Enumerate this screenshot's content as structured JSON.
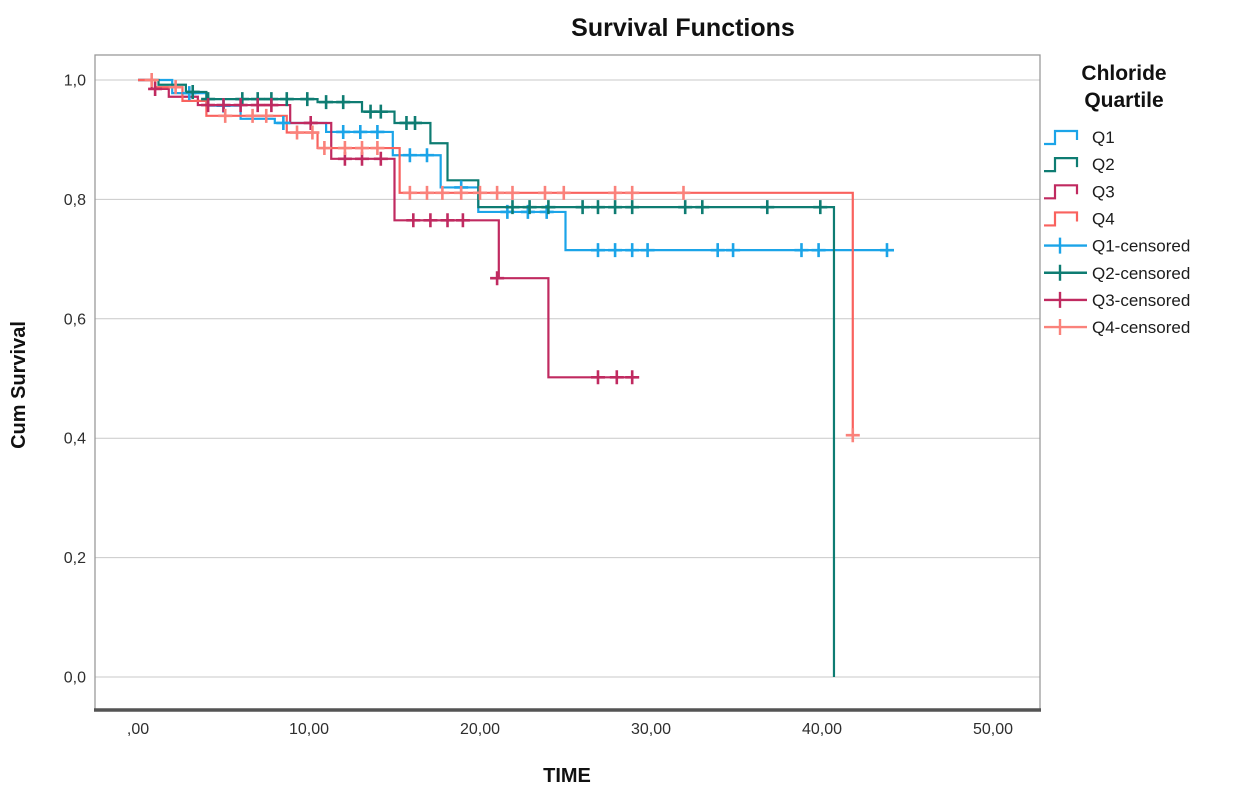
{
  "legend": {
    "title_lines": [
      "Chloride",
      "Quartile"
    ]
  },
  "colors": {
    "grid": "#c9c9c9",
    "frame": "#9a9a9a",
    "axis_bottom": "#545454",
    "background": "#ffffff"
  },
  "chart_data": {
    "type": "line",
    "subtype": "kaplan-meier-step-survival",
    "title": "Survival Functions",
    "xlabel": "TIME",
    "ylabel": "Cum Survival",
    "xlim": [
      -2.5,
      52.7
    ],
    "ylim": [
      -0.055,
      1.042
    ],
    "grid": true,
    "legend_position": "right",
    "xtick_values": [
      0,
      10,
      20,
      30,
      40,
      50
    ],
    "xtick_labels": [
      ",00",
      "10,00",
      "20,00",
      "30,00",
      "40,00",
      "50,00"
    ],
    "ytick_values": [
      0,
      0.2,
      0.4,
      0.6,
      0.8,
      1.0
    ],
    "ytick_labels": [
      "0,0",
      "0,2",
      "0,4",
      "0,6",
      "0,8",
      "1,0"
    ],
    "series": [
      {
        "name": "Q1",
        "censored_name": "Q1-censored",
        "color": "#1BA4E8",
        "censored_color": "#1BA4E8",
        "steps": [
          [
            0,
            1
          ],
          [
            2,
            0.978
          ],
          [
            4,
            0.957
          ],
          [
            6,
            0.935
          ],
          [
            8,
            0.928
          ],
          [
            11,
            0.913
          ],
          [
            14.9,
            0.874
          ],
          [
            17.7,
            0.82
          ],
          [
            19.9,
            0.779
          ],
          [
            25,
            0.715
          ]
        ],
        "end_t": 44.2,
        "censored": [
          [
            3,
            0.978
          ],
          [
            5,
            0.957
          ],
          [
            8.5,
            0.928
          ],
          [
            12,
            0.913
          ],
          [
            13,
            0.913
          ],
          [
            14,
            0.913
          ],
          [
            15.9,
            0.874
          ],
          [
            16.9,
            0.874
          ],
          [
            18.9,
            0.82
          ],
          [
            21.6,
            0.779
          ],
          [
            22.8,
            0.779
          ],
          [
            23.9,
            0.779
          ],
          [
            26.9,
            0.715
          ],
          [
            27.9,
            0.715
          ],
          [
            28.9,
            0.715
          ],
          [
            29.8,
            0.715
          ],
          [
            33.9,
            0.715
          ],
          [
            34.8,
            0.715
          ],
          [
            38.8,
            0.715
          ],
          [
            39.8,
            0.715
          ],
          [
            43.8,
            0.715
          ]
        ]
      },
      {
        "name": "Q2",
        "censored_name": "Q2-censored",
        "color": "#0E7C72",
        "censored_color": "#0E7C72",
        "steps": [
          [
            0,
            1
          ],
          [
            1.2,
            0.992
          ],
          [
            2.8,
            0.98
          ],
          [
            4,
            0.968
          ],
          [
            10.5,
            0.963
          ],
          [
            13.1,
            0.947
          ],
          [
            15,
            0.928
          ],
          [
            17.1,
            0.894
          ],
          [
            18.1,
            0.832
          ],
          [
            19.9,
            0.787
          ],
          [
            40.7,
            0
          ]
        ],
        "end_t": 40.7,
        "censored": [
          [
            3.2,
            0.98
          ],
          [
            4.1,
            0.968
          ],
          [
            6.1,
            0.968
          ],
          [
            7,
            0.968
          ],
          [
            7.8,
            0.968
          ],
          [
            8.7,
            0.968
          ],
          [
            9.9,
            0.968
          ],
          [
            11,
            0.963
          ],
          [
            12,
            0.963
          ],
          [
            13.6,
            0.947
          ],
          [
            14.2,
            0.947
          ],
          [
            15.7,
            0.928
          ],
          [
            16.2,
            0.928
          ],
          [
            21.9,
            0.787
          ],
          [
            22.9,
            0.787
          ],
          [
            24,
            0.787
          ],
          [
            26,
            0.787
          ],
          [
            26.9,
            0.787
          ],
          [
            27.9,
            0.787
          ],
          [
            28.9,
            0.787
          ],
          [
            32,
            0.787
          ],
          [
            33,
            0.787
          ],
          [
            36.8,
            0.787
          ],
          [
            39.9,
            0.787
          ]
        ]
      },
      {
        "name": "Q3",
        "censored_name": "Q3-censored",
        "color": "#C02A60",
        "censored_color": "#C02A60",
        "steps": [
          [
            0,
            1
          ],
          [
            0.8,
            0.985
          ],
          [
            1.8,
            0.972
          ],
          [
            3.5,
            0.958
          ],
          [
            8.9,
            0.928
          ],
          [
            11.3,
            0.868
          ],
          [
            15,
            0.765
          ],
          [
            21.1,
            0.668
          ],
          [
            24,
            0.502
          ]
        ],
        "end_t": 29.2,
        "censored": [
          [
            1,
            0.985
          ],
          [
            4.1,
            0.958
          ],
          [
            5,
            0.958
          ],
          [
            6,
            0.958
          ],
          [
            7,
            0.958
          ],
          [
            7.8,
            0.958
          ],
          [
            10.1,
            0.928
          ],
          [
            12.1,
            0.868
          ],
          [
            13.1,
            0.868
          ],
          [
            14.2,
            0.868
          ],
          [
            16.1,
            0.765
          ],
          [
            17.1,
            0.765
          ],
          [
            18.1,
            0.765
          ],
          [
            19,
            0.765
          ],
          [
            21,
            0.668
          ],
          [
            26.9,
            0.502
          ],
          [
            28,
            0.502
          ],
          [
            28.9,
            0.502
          ]
        ]
      },
      {
        "name": "Q4",
        "censored_name": "Q4-censored",
        "color": "#F9625E",
        "censored_color": "#FA827B",
        "steps": [
          [
            0,
            1
          ],
          [
            1,
            0.988
          ],
          [
            2.6,
            0.965
          ],
          [
            4,
            0.94
          ],
          [
            8.7,
            0.912
          ],
          [
            10.5,
            0.886
          ],
          [
            15.3,
            0.811
          ],
          [
            41.8,
            0.405
          ]
        ],
        "end_t": 41.8,
        "censored": [
          [
            0.8,
            1
          ],
          [
            2.2,
            0.988
          ],
          [
            5.1,
            0.94
          ],
          [
            6.7,
            0.94
          ],
          [
            7.5,
            0.94
          ],
          [
            9.3,
            0.912
          ],
          [
            10.2,
            0.912
          ],
          [
            10.9,
            0.886
          ],
          [
            12.1,
            0.886
          ],
          [
            13.1,
            0.886
          ],
          [
            14,
            0.886
          ],
          [
            15.9,
            0.811
          ],
          [
            16.9,
            0.811
          ],
          [
            17.8,
            0.811
          ],
          [
            18.9,
            0.811
          ],
          [
            20,
            0.811
          ],
          [
            21,
            0.811
          ],
          [
            21.9,
            0.811
          ],
          [
            23.8,
            0.811
          ],
          [
            24.9,
            0.811
          ],
          [
            27.9,
            0.811
          ],
          [
            28.9,
            0.811
          ],
          [
            31.9,
            0.811
          ],
          [
            41.8,
            0.405
          ]
        ]
      }
    ]
  }
}
